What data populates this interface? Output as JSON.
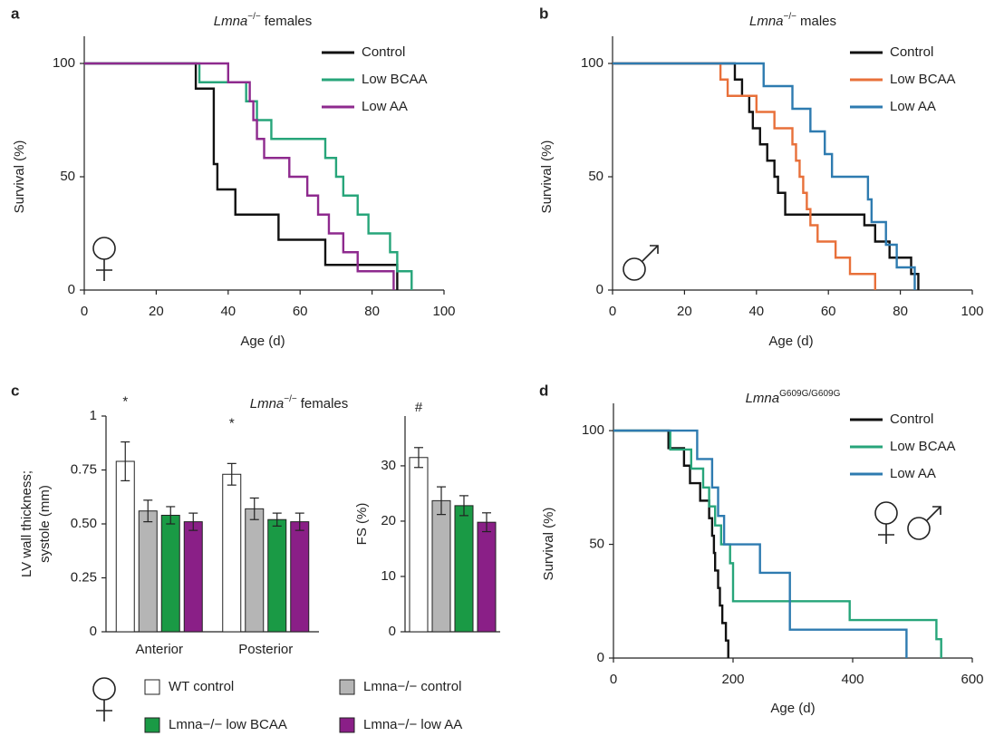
{
  "chart_data": [
    {
      "type": "line",
      "step": "post",
      "panel_label": "a",
      "title": "Lmna",
      "title_superscript": "−/−",
      "title_suffix": "females",
      "xlabel": "Age (d)",
      "ylabel": "Survival (%)",
      "xlim": [
        0,
        100
      ],
      "ylim": [
        0,
        112
      ],
      "xticks": [
        0,
        20,
        40,
        60,
        80,
        100
      ],
      "yticks": [
        0,
        50,
        100
      ],
      "legend": "upper right",
      "series": [
        {
          "name": "Control",
          "color": "#111111",
          "x": [
            0,
            31,
            36,
            37,
            42,
            54,
            67,
            87
          ],
          "values": [
            100,
            88.9,
            55.6,
            44.4,
            33.3,
            22.2,
            11.1,
            0
          ]
        },
        {
          "name": "Low BCAA",
          "color": "#27a57a",
          "x": [
            0,
            32,
            45,
            48,
            52,
            67,
            70,
            72,
            76,
            79,
            85,
            87,
            91
          ],
          "values": [
            100,
            91.7,
            83.3,
            75,
            66.7,
            58.3,
            50,
            41.7,
            33.3,
            25,
            16.7,
            8.3,
            0
          ]
        },
        {
          "name": "Low AA",
          "color": "#8e2a8e",
          "x": [
            0,
            40,
            46,
            47,
            48,
            50,
            57,
            62,
            65,
            68,
            72,
            76,
            86
          ],
          "values": [
            100,
            91.7,
            83.3,
            75,
            66.7,
            58.3,
            50,
            41.7,
            33.3,
            25,
            16.7,
            8.3,
            0
          ]
        }
      ]
    },
    {
      "type": "line",
      "step": "post",
      "panel_label": "b",
      "title": "Lmna",
      "title_superscript": "−/−",
      "title_suffix": "males",
      "xlabel": "Age (d)",
      "ylabel": "Survival (%)",
      "xlim": [
        0,
        100
      ],
      "ylim": [
        0,
        112
      ],
      "xticks": [
        0,
        20,
        40,
        60,
        80,
        100
      ],
      "yticks": [
        0,
        50,
        100
      ],
      "legend": "upper right",
      "series": [
        {
          "name": "Control",
          "color": "#111111",
          "x": [
            0,
            34,
            36,
            38,
            39,
            41,
            43,
            45,
            46,
            48,
            70,
            73,
            77,
            83,
            85
          ],
          "values": [
            100,
            92.9,
            85.7,
            78.6,
            71.4,
            64.3,
            57.1,
            50,
            42.9,
            33.3,
            28.6,
            21.4,
            14.3,
            7.1,
            0
          ]
        },
        {
          "name": "Low BCAA",
          "color": "#e8703a",
          "x": [
            0,
            30,
            32,
            40,
            45,
            50,
            51,
            52,
            53,
            54,
            55,
            57,
            62,
            66,
            73
          ],
          "values": [
            100,
            92.9,
            85.7,
            78.6,
            71.4,
            64.3,
            57.1,
            50,
            42.9,
            35.7,
            28.6,
            21.4,
            14.3,
            7.1,
            0
          ]
        },
        {
          "name": "Low AA",
          "color": "#2e7bb0",
          "x": [
            0,
            42,
            50,
            55,
            59,
            61,
            71,
            72,
            76,
            79,
            84
          ],
          "values": [
            100,
            90,
            80,
            70,
            60,
            50,
            40,
            30,
            20,
            10,
            0
          ]
        }
      ]
    },
    {
      "type": "bar",
      "panel_label": "c",
      "title": "Lmna",
      "title_superscript": "−/−",
      "title_suffix": "females",
      "ylabel": [
        "LV wall thickness;",
        "systole (mm)"
      ],
      "categories": [
        "Anterior",
        "Posterior"
      ],
      "ylim": [
        0,
        1
      ],
      "yticks": [
        0,
        0.25,
        {
          "value": 0.5,
          "label": "0.50"
        },
        0.75,
        1
      ],
      "legend": "bottom",
      "series": [
        {
          "name": "WT control",
          "color": "#ffffff",
          "values": [
            0.79,
            0.73
          ],
          "errors": [
            0.09,
            0.05
          ],
          "significance": [
            "*",
            "*"
          ]
        },
        {
          "name": "Lmna−/− control",
          "color": "#b5b5b5",
          "values": [
            0.56,
            0.57
          ],
          "errors": [
            0.05,
            0.05
          ]
        },
        {
          "name": "Lmna−/− low BCAA",
          "color": "#1a9a45",
          "values": [
            0.54,
            0.52
          ],
          "errors": [
            0.04,
            0.03
          ]
        },
        {
          "name": "Lmna−/− low AA",
          "color": "#8a1f87",
          "values": [
            0.51,
            0.51
          ],
          "errors": [
            0.04,
            0.04
          ]
        }
      ]
    },
    {
      "type": "bar",
      "ylabel": "FS (%)",
      "categories": [
        null
      ],
      "ylim": [
        0,
        39
      ],
      "yticks": [
        0,
        10,
        20,
        30
      ],
      "series": [
        {
          "color": "#ffffff",
          "values": [
            31.5
          ],
          "errors": [
            1.8
          ],
          "significance": [
            "#"
          ]
        },
        {
          "color": "#b5b5b5",
          "values": [
            23.7
          ],
          "errors": [
            2.5
          ]
        },
        {
          "color": "#1a9a45",
          "values": [
            22.8
          ],
          "errors": [
            1.8
          ]
        },
        {
          "color": "#8a1f87",
          "values": [
            19.8
          ],
          "errors": [
            1.7
          ]
        }
      ]
    },
    {
      "type": "line",
      "step": "post",
      "panel_label": "d",
      "title": "Lmna",
      "title_superscript": "G609G/G609G",
      "xlabel": "Age (d)",
      "ylabel": "Survival (%)",
      "xlim": [
        0,
        600
      ],
      "ylim": [
        0,
        112
      ],
      "xticks": [
        0,
        200,
        400,
        600
      ],
      "yticks": [
        0,
        50,
        100
      ],
      "legend": "upper right",
      "series": [
        {
          "name": "Control",
          "color": "#111111",
          "x": [
            0,
            92,
            118,
            128,
            145,
            160,
            165,
            168,
            170,
            175,
            178,
            182,
            188,
            192
          ],
          "values": [
            100,
            92.3,
            84.6,
            76.9,
            69.2,
            61.5,
            53.8,
            46.2,
            38.5,
            30.8,
            23.1,
            15.4,
            7.7,
            0
          ]
        },
        {
          "name": "Low BCAA",
          "color": "#27a57a",
          "x": [
            0,
            95,
            130,
            150,
            160,
            170,
            180,
            195,
            200,
            395,
            540,
            548
          ],
          "values": [
            100,
            91.7,
            83.3,
            75,
            66.7,
            58.3,
            50,
            41.7,
            25,
            16.7,
            8.3,
            0
          ]
        },
        {
          "name": "Low AA",
          "color": "#2e7bb0",
          "x": [
            0,
            140,
            165,
            175,
            185,
            245,
            295,
            490
          ],
          "values": [
            100,
            87.5,
            75,
            62.5,
            50,
            37.5,
            12.5,
            0
          ]
        }
      ]
    }
  ]
}
